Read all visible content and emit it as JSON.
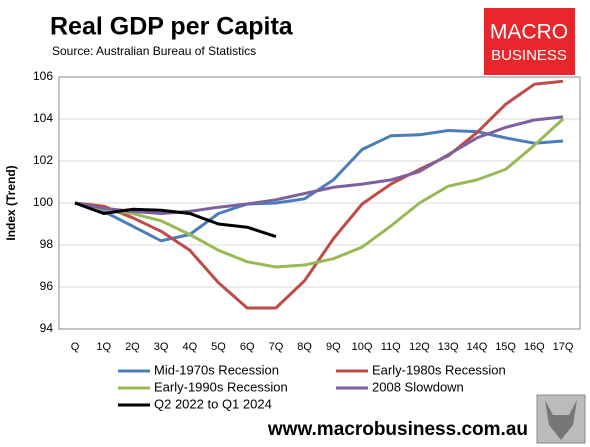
{
  "chart_data": {
    "type": "line",
    "title": "Real GDP per Capita",
    "subtitle": "Source: Australian Bureau of Statistics",
    "ylabel": "Index (Trend)",
    "categories": [
      "Q",
      "1Q",
      "2Q",
      "3Q",
      "4Q",
      "5Q",
      "6Q",
      "7Q",
      "8Q",
      "9Q",
      "10Q",
      "11Q",
      "12Q",
      "13Q",
      "14Q",
      "15Q",
      "16Q",
      "17Q"
    ],
    "series": [
      {
        "name": "Mid-1970s Recession",
        "color": "#4a7ebb",
        "values": [
          100,
          99.6,
          98.9,
          98.2,
          98.5,
          99.5,
          99.95,
          100.0,
          100.2,
          101.1,
          102.55,
          103.2,
          103.25,
          103.45,
          103.4,
          103.1,
          102.85,
          102.95
        ]
      },
      {
        "name": "Early-1980s Recession",
        "color": "#be4b48",
        "values": [
          100,
          99.85,
          99.3,
          98.65,
          97.75,
          96.2,
          95.0,
          95.0,
          96.3,
          98.3,
          99.95,
          100.9,
          101.6,
          102.25,
          103.35,
          104.7,
          105.65,
          105.8
        ]
      },
      {
        "name": "Early-1990s Recession",
        "color": "#98b954",
        "values": [
          100,
          99.7,
          99.5,
          99.15,
          98.5,
          97.75,
          97.2,
          96.95,
          97.05,
          97.35,
          97.9,
          98.9,
          100.0,
          100.8,
          101.1,
          101.6,
          102.75,
          104.0
        ]
      },
      {
        "name": "2008 Slowdown",
        "color": "#7d60a0",
        "values": [
          100,
          99.75,
          99.6,
          99.5,
          99.6,
          99.8,
          99.95,
          100.15,
          100.45,
          100.75,
          100.9,
          101.1,
          101.5,
          102.3,
          103.1,
          103.6,
          103.95,
          104.1
        ]
      },
      {
        "name": "Q2 2022 to Q1 2024",
        "color": "#000000",
        "values": [
          100,
          99.5,
          99.7,
          99.65,
          99.5,
          99.0,
          98.85,
          98.4,
          null,
          null,
          null,
          null,
          null,
          null,
          null,
          null,
          null,
          null
        ]
      }
    ],
    "ylim": [
      94,
      106
    ],
    "yticks": [
      94,
      96,
      98,
      100,
      102,
      104,
      106
    ],
    "grid": true
  },
  "logo": {
    "line1": "MACRO",
    "line2": "BUSINESS"
  },
  "footer": "www.macrobusiness.com.au"
}
